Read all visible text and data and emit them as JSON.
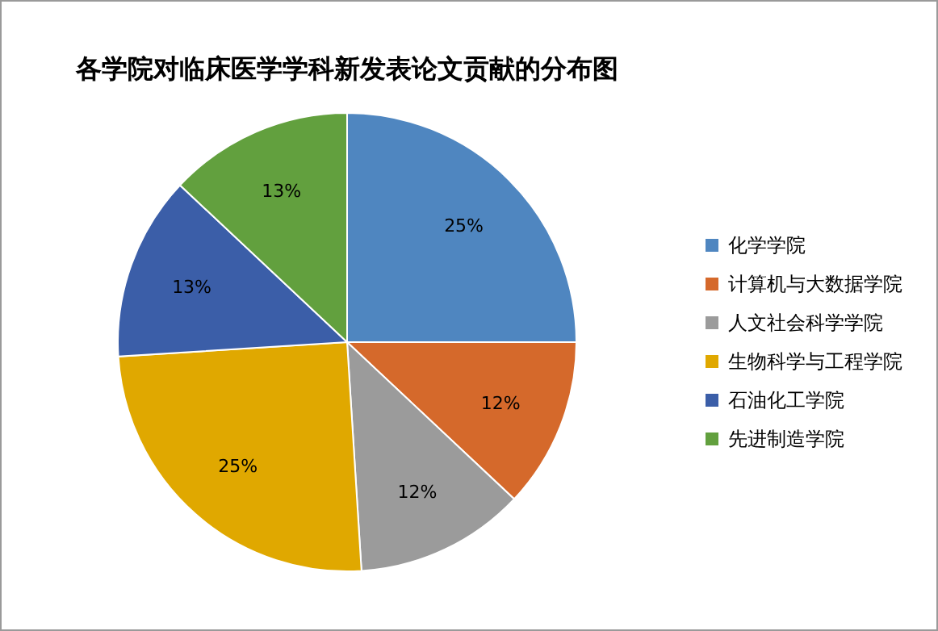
{
  "chart_data": {
    "type": "pie",
    "title": "各学院对临床医学学科新发表论文贡献的分布图",
    "categories": [
      "化学学院",
      "计算机与大数据学院",
      "人文社会科学学院",
      "生物科学与工程学院",
      "石油化工学院",
      "先进制造学院"
    ],
    "values": [
      25,
      12,
      12,
      25,
      13,
      13
    ],
    "colors": [
      "#4f86c0",
      "#d5692b",
      "#9b9b9b",
      "#e0a800",
      "#3b5ea8",
      "#62a03e"
    ],
    "value_labels": [
      "25%",
      "12%",
      "12%",
      "25%",
      "13%",
      "13%"
    ],
    "legend": "right"
  }
}
